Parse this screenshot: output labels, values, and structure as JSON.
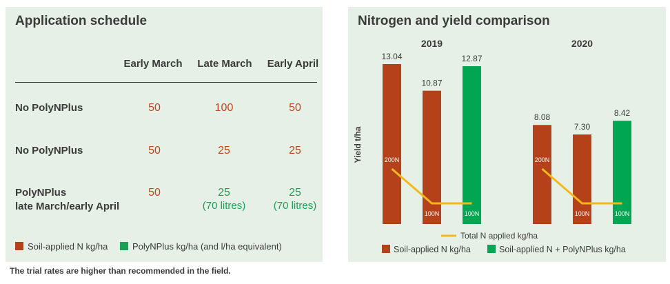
{
  "schedule": {
    "title": "Application schedule",
    "columns": [
      "Early March",
      "Late March",
      "Early April"
    ],
    "rows": [
      {
        "label_lines": [
          "No PolyNPlus"
        ],
        "cells": [
          {
            "value": "50",
            "sub": "",
            "kind": "orange"
          },
          {
            "value": "100",
            "sub": "",
            "kind": "orange"
          },
          {
            "value": "50",
            "sub": "",
            "kind": "orange"
          }
        ]
      },
      {
        "label_lines": [
          "No PolyNPlus"
        ],
        "cells": [
          {
            "value": "50",
            "sub": "",
            "kind": "orange"
          },
          {
            "value": "25",
            "sub": "",
            "kind": "orange"
          },
          {
            "value": "25",
            "sub": "",
            "kind": "orange"
          }
        ]
      },
      {
        "label_lines": [
          "PolyNPlus",
          "late March/early April"
        ],
        "cells": [
          {
            "value": "50",
            "sub": "",
            "kind": "orange"
          },
          {
            "value": "25",
            "sub": "(70 litres)",
            "kind": "green"
          },
          {
            "value": "25",
            "sub": "(70 litres)",
            "kind": "green"
          }
        ]
      }
    ],
    "legend": [
      {
        "label": "Soil-applied N kg/ha",
        "color": "#b5411a"
      },
      {
        "label": "PolyNPlus kg/ha (and l/ha equivalent)",
        "color": "#1aa157"
      }
    ],
    "footnote": "The trial rates are higher than recommended in the field."
  },
  "chart_data": {
    "type": "bar",
    "title": "Nitrogen and yield comparison",
    "ylabel": "Yield t/ha",
    "ylim": [
      0,
      13.04
    ],
    "colors": {
      "soil": "#b5411a",
      "poly": "#00a651",
      "line": "#f6b819"
    },
    "groups": [
      {
        "name": "2019",
        "bars": [
          {
            "value": 13.04,
            "label": "13.04",
            "kind": "soil",
            "inner": "200N"
          },
          {
            "value": 10.87,
            "label": "10.87",
            "kind": "soil",
            "inner": "100N"
          },
          {
            "value": 12.87,
            "label": "12.87",
            "kind": "poly",
            "inner": "100N"
          }
        ],
        "total_n": [
          200,
          100,
          100
        ]
      },
      {
        "name": "2020",
        "bars": [
          {
            "value": 8.08,
            "label": "8.08",
            "kind": "soil",
            "inner": "200N"
          },
          {
            "value": 7.3,
            "label": "7.30",
            "kind": "soil",
            "inner": "100N"
          },
          {
            "value": 8.42,
            "label": "8.42",
            "kind": "poly",
            "inner": "100N"
          }
        ],
        "total_n": [
          200,
          100,
          100
        ]
      }
    ],
    "legend": {
      "line": "Total N applied kg/ha",
      "soil": "Soil-applied N kg/ha",
      "poly": "Soil-applied N + PolyNPlus kg/ha"
    }
  }
}
